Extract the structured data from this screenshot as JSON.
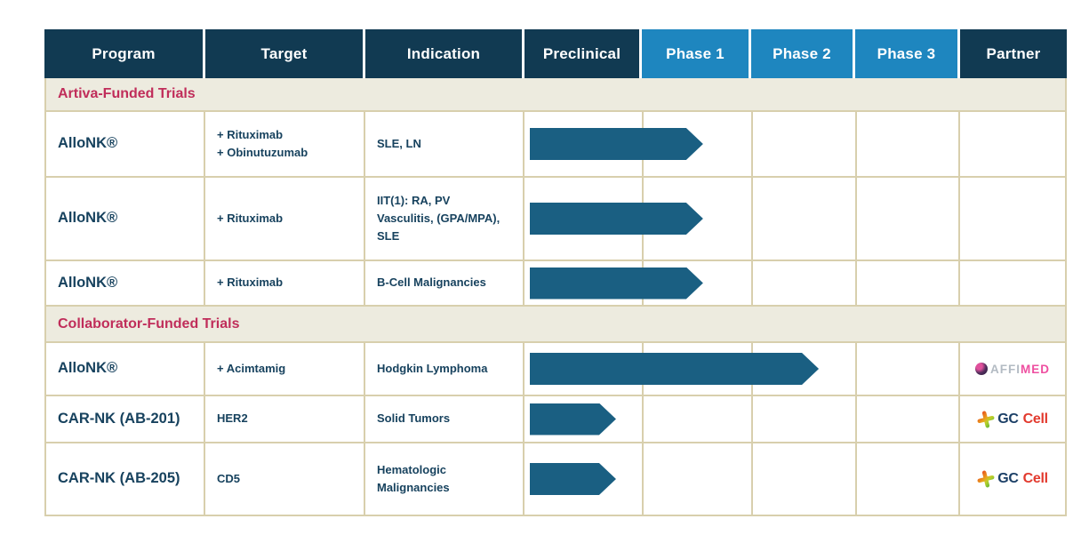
{
  "table": {
    "columns": [
      {
        "label": "Program",
        "style": "dark"
      },
      {
        "label": "Target",
        "style": "dark"
      },
      {
        "label": "Indication",
        "style": "dark"
      },
      {
        "label": "Preclinical",
        "style": "dark"
      },
      {
        "label": "Phase 1",
        "style": "blue"
      },
      {
        "label": "Phase 2",
        "style": "blue"
      },
      {
        "label": "Phase 3",
        "style": "blue"
      },
      {
        "label": "Partner",
        "style": "dark"
      }
    ],
    "phases": [
      "Preclinical",
      "Phase 1",
      "Phase 2",
      "Phase 3"
    ],
    "sections": [
      {
        "title": "Artiva-Funded Trials",
        "rows": [
          {
            "program": "AlloNK®",
            "target": [
              "+ Rituximab",
              "+ Obinutuzumab"
            ],
            "indication": "SLE, LN",
            "progress": 1.56,
            "partner": ""
          },
          {
            "program": "AlloNK®",
            "target": [
              "+ Rituximab"
            ],
            "indication": "IIT(1): RA, PV Vasculitis, (GPA/MPA), SLE",
            "progress": 1.56,
            "partner": ""
          },
          {
            "program": "AlloNK®",
            "target": [
              "+ Rituximab"
            ],
            "indication": "B-Cell Malignancies",
            "progress": 1.56,
            "partner": ""
          }
        ]
      },
      {
        "title": "Collaborator-Funded Trials",
        "rows": [
          {
            "program": "AlloNK®",
            "target": [
              "+ Acimtamig"
            ],
            "indication": "Hodgkin Lymphoma",
            "progress": 2.65,
            "partner": "Affimed"
          },
          {
            "program": "CAR-NK (AB-201)",
            "target": [
              "HER2"
            ],
            "indication": "Solid Tumors",
            "progress": 0.78,
            "partner": "GC Cell"
          },
          {
            "program": "CAR-NK (AB-205)",
            "target": [
              "CD5"
            ],
            "indication": "Hematologic Malignancies",
            "progress": 0.78,
            "partner": "GC Cell"
          }
        ]
      }
    ]
  },
  "partners": {
    "affimed": {
      "text_gray": "AFFI",
      "text_pink": "MED"
    },
    "gccell": {
      "text_navy": "GC",
      "text_red": "Cell"
    }
  },
  "colors": {
    "header_dark": "#113a52",
    "header_blue": "#1e86bf",
    "arrow": "#1a5f82",
    "section_bg": "#edebdf",
    "section_text": "#c02d5a",
    "border": "#d8cfad",
    "cell_text": "#17425e"
  }
}
